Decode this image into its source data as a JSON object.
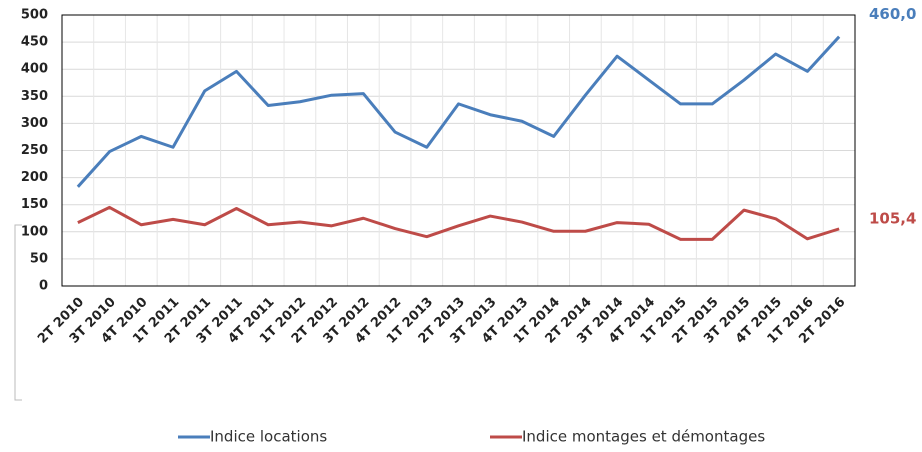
{
  "chart_data": {
    "type": "line",
    "categories": [
      "2T 2010",
      "3T 2010",
      "4T 2010",
      "1T 2011",
      "2T 2011",
      "3T 2011",
      "4T 2011",
      "1T 2012",
      "2T 2012",
      "3T 2012",
      "4T 2012",
      "1T 2013",
      "2T 2013",
      "3T 2013",
      "4T 2013",
      "1T 2014",
      "2T 2014",
      "3T 2014",
      "4T 2014",
      "1T 2015",
      "2T 2015",
      "3T 2015",
      "4T 2015",
      "1T 2016",
      "2T 2016"
    ],
    "series": [
      {
        "name": "Indice locations",
        "color": "#4a7ebb",
        "end_label": "460,0",
        "values": [
          183,
          248,
          276,
          256,
          360,
          396,
          333,
          340,
          352,
          355,
          284,
          256,
          336,
          316,
          304,
          276,
          352,
          424,
          380,
          336,
          336,
          380,
          428,
          396,
          460
        ]
      },
      {
        "name": "Indice montages et démontages",
        "color": "#be4b48",
        "end_label": "105,4",
        "values": [
          117,
          145,
          113,
          123,
          113,
          143,
          113,
          118,
          111,
          125,
          106,
          91,
          111,
          129,
          118,
          101,
          101,
          117,
          114,
          86,
          86,
          140,
          124,
          87,
          105.4
        ]
      }
    ],
    "ylim": [
      0,
      500
    ],
    "yticks": [
      0,
      50,
      100,
      150,
      200,
      250,
      300,
      350,
      400,
      450,
      500
    ],
    "grid": true,
    "legend": "bottom"
  }
}
